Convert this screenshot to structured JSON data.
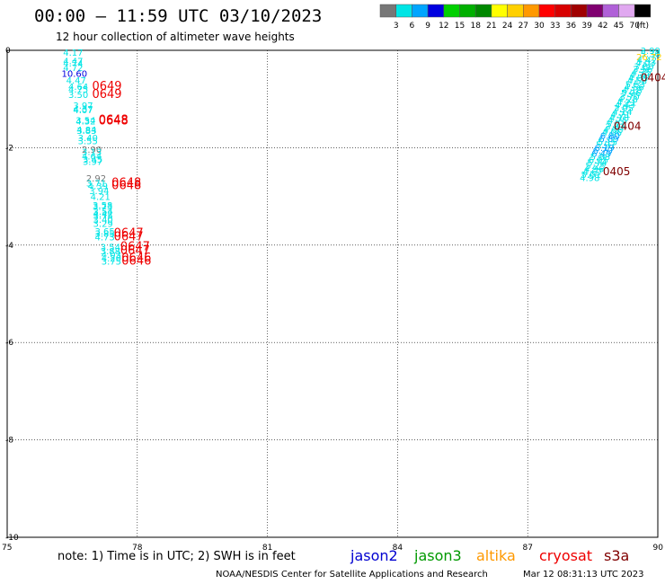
{
  "header": {
    "title": "00:00 – 11:59 UTC 03/10/2023",
    "subtitle": "12 hour collection of altimeter wave heights"
  },
  "colorbar": {
    "colors": [
      "#777777",
      "#00e5e5",
      "#00a5ff",
      "#0000e0",
      "#00d000",
      "#00b000",
      "#008800",
      "#ffff00",
      "#ffd000",
      "#ff9900",
      "#ff0000",
      "#d80000",
      "#a00000",
      "#800070",
      "#b060d8",
      "#e0a8f0",
      "#000000"
    ],
    "labels": [
      "3",
      "6",
      "9",
      "12",
      "15",
      "18",
      "21",
      "24",
      "27",
      "30",
      "33",
      "36",
      "39",
      "42",
      "45",
      "70",
      "(ft)"
    ]
  },
  "map": {
    "x_ticks": [
      "75",
      "78",
      "81",
      "84",
      "87",
      "90"
    ],
    "y_ticks": [
      "0",
      "-2",
      "-4",
      "-6",
      "-8",
      "-10"
    ],
    "xlim": [
      75,
      90
    ],
    "ylim": [
      -10,
      0
    ],
    "grid": true,
    "track1": [
      {
        "v": "4.17",
        "c": "#00e5e5",
        "lon": 76.52,
        "lat": -0.04
      },
      {
        "v": "4.47",
        "c": "#00e5e5",
        "lon": 76.52,
        "lat": -0.21
      },
      {
        "v": "4.74",
        "c": "#00e5e5",
        "lon": 76.52,
        "lat": -0.26
      },
      {
        "v": "4.72",
        "c": "#00e5e5",
        "lon": 76.52,
        "lat": -0.35
      },
      {
        "v": "10.60",
        "c": "#0000e0",
        "lon": 76.55,
        "lat": -0.47
      },
      {
        "v": "4.47",
        "c": "#00e5e5",
        "lon": 76.59,
        "lat": -0.61
      },
      {
        "v": "4.64",
        "c": "#00e5e5",
        "lon": 76.64,
        "lat": -0.74
      },
      {
        "v": "4.75",
        "c": "#00e5e5",
        "lon": 76.64,
        "lat": -0.79
      },
      {
        "v": "3.50",
        "c": "#00e5e5",
        "lon": 76.64,
        "lat": -0.9
      },
      {
        "v": "3.97",
        "c": "#00e5e5",
        "lon": 76.75,
        "lat": -1.13
      },
      {
        "v": "4.37",
        "c": "#00e5e5",
        "lon": 76.75,
        "lat": -1.2
      },
      {
        "v": "4.07",
        "c": "#00e5e5",
        "lon": 76.75,
        "lat": -1.22
      },
      {
        "v": "3.54",
        "c": "#00e5e5",
        "lon": 76.81,
        "lat": -1.43
      },
      {
        "v": "4.32",
        "c": "#00e5e5",
        "lon": 76.81,
        "lat": -1.45
      },
      {
        "v": "4.84",
        "c": "#00e5e5",
        "lon": 76.83,
        "lat": -1.62
      },
      {
        "v": "3.83",
        "c": "#00e5e5",
        "lon": 76.83,
        "lat": -1.64
      },
      {
        "v": "3.40",
        "c": "#00e5e5",
        "lon": 76.86,
        "lat": -1.79
      },
      {
        "v": "3.55",
        "c": "#00e5e5",
        "lon": 76.86,
        "lat": -1.85
      },
      {
        "v": "2.90",
        "c": "#777777",
        "lon": 76.95,
        "lat": -2.03
      },
      {
        "v": "3.13",
        "c": "#00e5e5",
        "lon": 76.95,
        "lat": -2.08
      },
      {
        "v": "4.64",
        "c": "#00e5e5",
        "lon": 76.95,
        "lat": -2.17
      },
      {
        "v": "3.45",
        "c": "#00e5e5",
        "lon": 76.97,
        "lat": -2.23
      },
      {
        "v": "3.97",
        "c": "#00e5e5",
        "lon": 76.97,
        "lat": -2.28
      },
      {
        "v": "2.92",
        "c": "#777777",
        "lon": 77.05,
        "lat": -2.62
      },
      {
        "v": "3.71",
        "c": "#00e5e5",
        "lon": 77.05,
        "lat": -2.72
      },
      {
        "v": "4.39",
        "c": "#00e5e5",
        "lon": 77.09,
        "lat": -2.78
      },
      {
        "v": "3.94",
        "c": "#00e5e5",
        "lon": 77.12,
        "lat": -2.88
      },
      {
        "v": "4.21",
        "c": "#00e5e5",
        "lon": 77.15,
        "lat": -3.0
      },
      {
        "v": "3.58",
        "c": "#00e5e5",
        "lon": 77.2,
        "lat": -3.17
      },
      {
        "v": "3.73",
        "c": "#00e5e5",
        "lon": 77.2,
        "lat": -3.2
      },
      {
        "v": "3.54",
        "c": "#00e5e5",
        "lon": 77.21,
        "lat": -3.3
      },
      {
        "v": "4.42",
        "c": "#00e5e5",
        "lon": 77.21,
        "lat": -3.35
      },
      {
        "v": "3.75",
        "c": "#00e5e5",
        "lon": 77.21,
        "lat": -3.39
      },
      {
        "v": "3.40",
        "c": "#00e5e5",
        "lon": 77.21,
        "lat": -3.47
      },
      {
        "v": "3.29",
        "c": "#00e5e5",
        "lon": 77.21,
        "lat": -3.55
      },
      {
        "v": "3.65",
        "c": "#00e5e5",
        "lon": 77.25,
        "lat": -3.71
      },
      {
        "v": "3.85",
        "c": "#00e5e5",
        "lon": 77.25,
        "lat": -3.75
      },
      {
        "v": "4.73",
        "c": "#00e5e5",
        "lon": 77.25,
        "lat": -3.83
      },
      {
        "v": "3.54",
        "c": "#00e5e5",
        "lon": 77.38,
        "lat": -4.03
      },
      {
        "v": "3.88",
        "c": "#00e5e5",
        "lon": 77.38,
        "lat": -4.11
      },
      {
        "v": "4.03",
        "c": "#00e5e5",
        "lon": 77.4,
        "lat": -4.19
      },
      {
        "v": "4.20",
        "c": "#00e5e5",
        "lon": 77.4,
        "lat": -4.26
      },
      {
        "v": "3.75",
        "c": "#00e5e5",
        "lon": 77.4,
        "lat": -4.33
      }
    ],
    "track1_times": [
      {
        "v": "0649",
        "c": "#ee0000",
        "lon": 77.3,
        "lat": -0.74
      },
      {
        "v": "0649",
        "c": "#ee0000",
        "lon": 77.3,
        "lat": -0.9
      },
      {
        "v": "0648",
        "c": "#ee0000",
        "lon": 77.45,
        "lat": -1.43
      },
      {
        "v": "0648",
        "c": "#ee0000",
        "lon": 77.45,
        "lat": -1.45
      },
      {
        "v": "0648",
        "c": "#ee0000",
        "lon": 77.75,
        "lat": -2.72
      },
      {
        "v": "0648",
        "c": "#ee0000",
        "lon": 77.75,
        "lat": -2.78
      },
      {
        "v": "0647",
        "c": "#ee0000",
        "lon": 77.8,
        "lat": -3.75
      },
      {
        "v": "0647",
        "c": "#ee0000",
        "lon": 77.8,
        "lat": -3.83
      },
      {
        "v": "0647",
        "c": "#ee0000",
        "lon": 77.95,
        "lat": -4.03
      },
      {
        "v": "0647",
        "c": "#ee0000",
        "lon": 77.95,
        "lat": -4.11
      },
      {
        "v": "0646",
        "c": "#ee0000",
        "lon": 77.98,
        "lat": -4.26
      },
      {
        "v": "0646",
        "c": "#ee0000",
        "lon": 77.98,
        "lat": -4.33
      }
    ],
    "track2": [
      {
        "v": "3.99",
        "c": "#00e5e5",
        "lon": 89.83,
        "lat": -0.0
      },
      {
        "v": "5.30",
        "c": "#00e5e5",
        "lon": 89.83,
        "lat": -0.06
      },
      {
        "v": "26.72",
        "c": "#ffd000",
        "lon": 89.8,
        "lat": -0.13
      },
      {
        "v": "4.42",
        "c": "#00e5e5",
        "lon": 89.75,
        "lat": -0.19
      },
      {
        "v": "4.03",
        "c": "#00e5e5",
        "lon": 89.72,
        "lat": -0.25
      },
      {
        "v": "3.80",
        "c": "#00e5e5",
        "lon": 89.68,
        "lat": -0.32
      },
      {
        "v": "3.56",
        "c": "#00e5e5",
        "lon": 89.65,
        "lat": -0.38
      },
      {
        "v": "4.75",
        "c": "#00e5e5",
        "lon": 89.62,
        "lat": -0.44
      },
      {
        "v": "4.30",
        "c": "#00e5e5",
        "lon": 89.58,
        "lat": -0.5
      },
      {
        "v": "4.05",
        "c": "#00e5e5",
        "lon": 89.55,
        "lat": -0.56
      },
      {
        "v": "4.58",
        "c": "#00e5e5",
        "lon": 89.52,
        "lat": -0.62
      },
      {
        "v": "5.53",
        "c": "#00e5e5",
        "lon": 89.48,
        "lat": -0.69
      },
      {
        "v": "4.56",
        "c": "#00e5e5",
        "lon": 89.45,
        "lat": -0.75
      },
      {
        "v": "4.18",
        "c": "#00e5e5",
        "lon": 89.41,
        "lat": -0.81
      },
      {
        "v": "5.06",
        "c": "#00e5e5",
        "lon": 89.38,
        "lat": -0.87
      },
      {
        "v": "3.70",
        "c": "#00e5e5",
        "lon": 89.35,
        "lat": -0.94
      },
      {
        "v": "4.28",
        "c": "#00e5e5",
        "lon": 89.31,
        "lat": -1.0
      },
      {
        "v": "4.21",
        "c": "#00e5e5",
        "lon": 89.28,
        "lat": -1.06
      },
      {
        "v": "4.43",
        "c": "#00e5e5",
        "lon": 89.24,
        "lat": -1.12
      },
      {
        "v": "3.95",
        "c": "#00e5e5",
        "lon": 89.21,
        "lat": -1.18
      },
      {
        "v": "4.14",
        "c": "#00e5e5",
        "lon": 89.18,
        "lat": -1.25
      },
      {
        "v": "4.71",
        "c": "#00e5e5",
        "lon": 89.14,
        "lat": -1.31
      },
      {
        "v": "4.18",
        "c": "#00e5e5",
        "lon": 89.11,
        "lat": -1.37
      },
      {
        "v": "4.75",
        "c": "#00e5e5",
        "lon": 89.07,
        "lat": -1.43
      },
      {
        "v": "5.21",
        "c": "#00e5e5",
        "lon": 89.04,
        "lat": -1.5
      },
      {
        "v": "3.81",
        "c": "#00e5e5",
        "lon": 89.01,
        "lat": -1.56
      },
      {
        "v": "4.06",
        "c": "#00e5e5",
        "lon": 88.97,
        "lat": -1.62
      },
      {
        "v": "4.06",
        "c": "#00e5e5",
        "lon": 88.94,
        "lat": -1.68
      },
      {
        "v": "6.80",
        "c": "#00a5ff",
        "lon": 88.9,
        "lat": -1.74
      },
      {
        "v": "6.89",
        "c": "#00a5ff",
        "lon": 88.87,
        "lat": -1.81
      },
      {
        "v": "5.15",
        "c": "#00e5e5",
        "lon": 88.84,
        "lat": -1.87
      },
      {
        "v": "5.97",
        "c": "#00e5e5",
        "lon": 88.8,
        "lat": -1.93
      },
      {
        "v": "6.19",
        "c": "#00a5ff",
        "lon": 88.77,
        "lat": -1.99
      },
      {
        "v": "6.70",
        "c": "#00a5ff",
        "lon": 88.73,
        "lat": -2.05
      },
      {
        "v": "6.49",
        "c": "#00a5ff",
        "lon": 88.7,
        "lat": -2.11
      },
      {
        "v": "5.88",
        "c": "#00e5e5",
        "lon": 88.67,
        "lat": -2.18
      },
      {
        "v": "6.05",
        "c": "#00e5e5",
        "lon": 88.63,
        "lat": -2.24
      },
      {
        "v": "5.74",
        "c": "#00e5e5",
        "lon": 88.6,
        "lat": -2.3
      },
      {
        "v": "5.25",
        "c": "#00e5e5",
        "lon": 88.56,
        "lat": -2.36
      },
      {
        "v": "4.96",
        "c": "#00e5e5",
        "lon": 88.53,
        "lat": -2.43
      },
      {
        "v": "4.67",
        "c": "#00e5e5",
        "lon": 88.5,
        "lat": -2.49
      },
      {
        "v": "5.01",
        "c": "#00e5e5",
        "lon": 88.46,
        "lat": -2.55
      },
      {
        "v": "4.98",
        "c": "#00e5e5",
        "lon": 88.43,
        "lat": -2.61
      }
    ],
    "track2_times": [
      {
        "v": "0404",
        "c": "#800000",
        "lon": 89.92,
        "lat": -0.56
      },
      {
        "v": "0404",
        "c": "#800000",
        "lon": 89.3,
        "lat": -1.56
      },
      {
        "v": "0405",
        "c": "#800000",
        "lon": 89.05,
        "lat": -2.49
      }
    ]
  },
  "footer": {
    "note": "note:  1) Time is in UTC;  2) SWH is in feet",
    "satellites": [
      {
        "name": "jason2",
        "color": "#0000d0"
      },
      {
        "name": "jason3",
        "color": "#009900"
      },
      {
        "name": "altika",
        "color": "#ff9900"
      },
      {
        "name": "cryosat",
        "color": "#ee0000"
      },
      {
        "name": "s3a",
        "color": "#800000"
      }
    ],
    "credit_left": "NOAA/NESDIS Center for Satellite Applications and Research",
    "credit_right": "Mar 12 08:31:13 UTC 2023"
  }
}
